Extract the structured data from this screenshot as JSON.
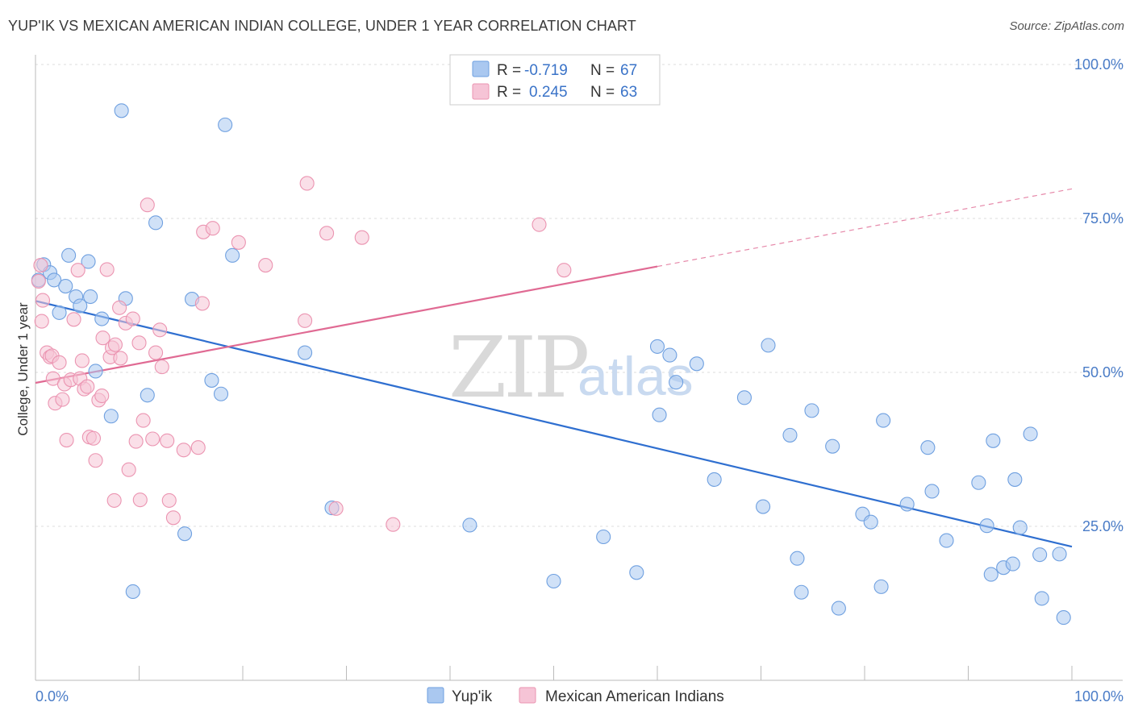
{
  "title": "YUP'IK VS MEXICAN AMERICAN INDIAN COLLEGE, UNDER 1 YEAR CORRELATION CHART",
  "source": "Source: ZipAtlas.com",
  "watermark": {
    "zip": "ZIP",
    "atlas": "atlas"
  },
  "legend": {
    "rows": [
      {
        "r_label": "R =",
        "r_value": "-0.719",
        "n_label": "N =",
        "n_value": "67"
      },
      {
        "r_label": "R =",
        "r_value": "0.245",
        "n_label": "N =",
        "n_value": "63"
      }
    ]
  },
  "chart_data": {
    "type": "scatter",
    "title": "YUP'IK VS MEXICAN AMERICAN INDIAN COLLEGE, UNDER 1 YEAR CORRELATION CHART",
    "xlabel": "",
    "ylabel": "College, Under 1 year",
    "xlim": [
      0,
      100
    ],
    "ylim": [
      0,
      100
    ],
    "x_tick_labels": [
      "0.0%",
      "100.0%"
    ],
    "y_tick_labels": [
      "100.0%",
      "75.0%",
      "50.0%",
      "25.0%"
    ],
    "y_tick_values": [
      100,
      75,
      50,
      25
    ],
    "grid": true,
    "legend_position": "top-center",
    "series": [
      {
        "name": "Yup'ik",
        "color": "#6fa0e0",
        "fill": "#aac8f0",
        "r": -0.719,
        "n": 67,
        "trend": {
          "x": [
            0,
            100
          ],
          "y": [
            61.6,
            21.7
          ],
          "dashed_from": null,
          "color": "#2f6fd0"
        },
        "points": [
          [
            0.3,
            65
          ],
          [
            0.8,
            67.5
          ],
          [
            1.4,
            66.2
          ],
          [
            1.8,
            65
          ],
          [
            2.3,
            59.7
          ],
          [
            2.9,
            64
          ],
          [
            3.2,
            69
          ],
          [
            3.9,
            62.3
          ],
          [
            4.3,
            60.8
          ],
          [
            5.1,
            68
          ],
          [
            5.3,
            62.3
          ],
          [
            5.8,
            50.2
          ],
          [
            6.4,
            58.7
          ],
          [
            7.3,
            42.9
          ],
          [
            8.3,
            92.5
          ],
          [
            8.7,
            62
          ],
          [
            9.4,
            14.4
          ],
          [
            10.8,
            46.3
          ],
          [
            11.6,
            74.3
          ],
          [
            14.4,
            23.8
          ],
          [
            15.1,
            61.9
          ],
          [
            17.0,
            48.7
          ],
          [
            17.9,
            46.5
          ],
          [
            18.3,
            90.2
          ],
          [
            19.0,
            69
          ],
          [
            26.0,
            53.2
          ],
          [
            28.6,
            28
          ],
          [
            41.9,
            25.2
          ],
          [
            50.0,
            16.1
          ],
          [
            54.8,
            23.3
          ],
          [
            58.0,
            17.5
          ],
          [
            60.0,
            54.2
          ],
          [
            60.2,
            43.1
          ],
          [
            61.2,
            52.8
          ],
          [
            61.8,
            48.4
          ],
          [
            63.8,
            51.4
          ],
          [
            65.5,
            32.6
          ],
          [
            68.4,
            45.9
          ],
          [
            70.2,
            28.2
          ],
          [
            70.7,
            54.4
          ],
          [
            72.8,
            39.8
          ],
          [
            73.5,
            19.8
          ],
          [
            73.9,
            14.3
          ],
          [
            74.9,
            43.8
          ],
          [
            76.9,
            38
          ],
          [
            77.5,
            11.7
          ],
          [
            79.8,
            27
          ],
          [
            80.6,
            25.7
          ],
          [
            81.6,
            15.2
          ],
          [
            81.8,
            42.2
          ],
          [
            84.1,
            28.6
          ],
          [
            86.1,
            37.8
          ],
          [
            86.5,
            30.7
          ],
          [
            87.9,
            22.7
          ],
          [
            91.0,
            32.1
          ],
          [
            91.8,
            25.1
          ],
          [
            92.2,
            17.2
          ],
          [
            92.4,
            38.9
          ],
          [
            93.4,
            18.3
          ],
          [
            94.3,
            18.9
          ],
          [
            94.5,
            32.6
          ],
          [
            95.0,
            24.8
          ],
          [
            96.0,
            40
          ],
          [
            96.9,
            20.4
          ],
          [
            97.1,
            13.3
          ],
          [
            98.8,
            20.5
          ],
          [
            99.2,
            10.2
          ]
        ]
      },
      {
        "name": "Mexican American Indians",
        "color": "#eb94b1",
        "fill": "#f6c4d6",
        "r": 0.245,
        "n": 63,
        "trend": {
          "x": [
            0,
            100
          ],
          "y": [
            48.3,
            79.8
          ],
          "dashed_from": 60,
          "color": "#e06a93"
        },
        "points": [
          [
            0.3,
            64.8
          ],
          [
            0.5,
            67.4
          ],
          [
            0.6,
            58.3
          ],
          [
            0.7,
            61.7
          ],
          [
            1.1,
            53.2
          ],
          [
            1.4,
            52.5
          ],
          [
            1.6,
            52.7
          ],
          [
            1.7,
            49
          ],
          [
            1.9,
            45
          ],
          [
            2.3,
            51.6
          ],
          [
            2.6,
            45.6
          ],
          [
            2.8,
            48.1
          ],
          [
            3.0,
            39
          ],
          [
            3.4,
            48.8
          ],
          [
            3.7,
            58.6
          ],
          [
            4.1,
            66.6
          ],
          [
            4.3,
            49
          ],
          [
            4.5,
            51.9
          ],
          [
            4.7,
            47.3
          ],
          [
            5.0,
            47.7
          ],
          [
            5.2,
            39.5
          ],
          [
            5.6,
            39.3
          ],
          [
            5.8,
            35.7
          ],
          [
            6.1,
            45.5
          ],
          [
            6.4,
            46.2
          ],
          [
            6.5,
            55.6
          ],
          [
            6.9,
            66.7
          ],
          [
            7.2,
            52.5
          ],
          [
            7.4,
            54
          ],
          [
            7.6,
            29.2
          ],
          [
            7.7,
            54.5
          ],
          [
            8.1,
            60.5
          ],
          [
            8.2,
            52.3
          ],
          [
            8.7,
            58
          ],
          [
            9.0,
            34.2
          ],
          [
            9.4,
            58.7
          ],
          [
            9.7,
            38.8
          ],
          [
            10.0,
            54.8
          ],
          [
            10.1,
            29.3
          ],
          [
            10.4,
            42.2
          ],
          [
            10.8,
            77.2
          ],
          [
            11.3,
            39.2
          ],
          [
            11.6,
            53.2
          ],
          [
            12.0,
            56.9
          ],
          [
            12.2,
            50.9
          ],
          [
            12.7,
            38.9
          ],
          [
            12.9,
            29.2
          ],
          [
            13.3,
            26.4
          ],
          [
            14.3,
            37.4
          ],
          [
            15.7,
            37.8
          ],
          [
            16.1,
            61.2
          ],
          [
            16.2,
            72.8
          ],
          [
            17.1,
            73.4
          ],
          [
            19.6,
            71.1
          ],
          [
            22.2,
            67.4
          ],
          [
            26.0,
            58.4
          ],
          [
            26.2,
            80.7
          ],
          [
            28.1,
            72.6
          ],
          [
            29.0,
            27.9
          ],
          [
            31.5,
            71.9
          ],
          [
            34.5,
            25.3
          ],
          [
            48.6,
            74
          ],
          [
            51.0,
            66.6
          ]
        ]
      }
    ]
  },
  "bottom_legend": [
    "Yup'ik",
    "Mexican American Indians"
  ]
}
